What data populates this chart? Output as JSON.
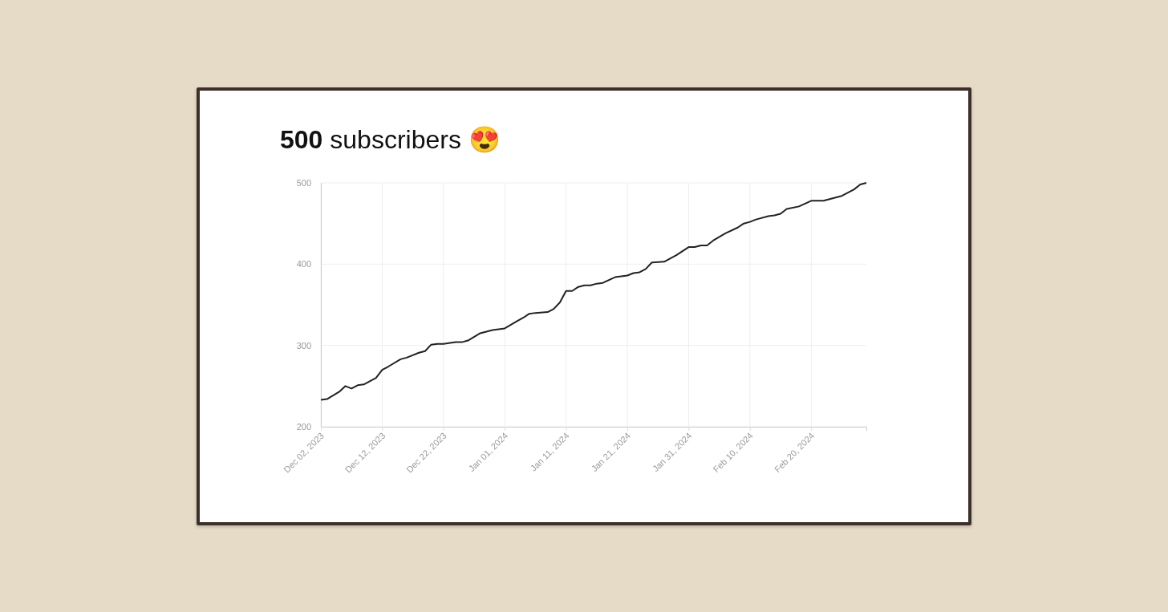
{
  "chart_data": {
    "type": "line",
    "title": "500 subscribers 😍",
    "x": [
      "2023-12-02",
      "2023-12-03",
      "2023-12-05",
      "2023-12-06",
      "2023-12-07",
      "2023-12-08",
      "2023-12-09",
      "2023-12-11",
      "2023-12-12",
      "2023-12-13",
      "2023-12-15",
      "2023-12-16",
      "2023-12-18",
      "2023-12-19",
      "2023-12-20",
      "2023-12-21",
      "2023-12-22",
      "2023-12-24",
      "2023-12-25",
      "2023-12-26",
      "2023-12-28",
      "2023-12-30",
      "2024-01-01",
      "2024-01-03",
      "2024-01-04",
      "2024-01-05",
      "2024-01-06",
      "2024-01-08",
      "2024-01-09",
      "2024-01-10",
      "2024-01-11",
      "2024-01-12",
      "2024-01-13",
      "2024-01-14",
      "2024-01-15",
      "2024-01-16",
      "2024-01-17",
      "2024-01-19",
      "2024-01-21",
      "2024-01-22",
      "2024-01-23",
      "2024-01-24",
      "2024-01-25",
      "2024-01-27",
      "2024-01-29",
      "2024-01-31",
      "2024-02-01",
      "2024-02-02",
      "2024-02-03",
      "2024-02-04",
      "2024-02-06",
      "2024-02-08",
      "2024-02-09",
      "2024-02-10",
      "2024-02-11",
      "2024-02-13",
      "2024-02-14",
      "2024-02-15",
      "2024-02-16",
      "2024-02-18",
      "2024-02-20",
      "2024-02-22",
      "2024-02-25",
      "2024-02-26",
      "2024-02-27",
      "2024-02-28",
      "2024-02-29"
    ],
    "series": [
      {
        "color": "#222222",
        "values": [
          233,
          234,
          243,
          250,
          247,
          251,
          252,
          260,
          270,
          274,
          283,
          285,
          291,
          293,
          301,
          302,
          302,
          304,
          304,
          306,
          315,
          319,
          321,
          330,
          334,
          339,
          340,
          341,
          345,
          353,
          367,
          367,
          372,
          374,
          374,
          376,
          377,
          384,
          386,
          389,
          390,
          394,
          402,
          403,
          411,
          421,
          421,
          423,
          423,
          429,
          438,
          445,
          450,
          452,
          455,
          459,
          460,
          462,
          468,
          471,
          478,
          478,
          484,
          488,
          492,
          498,
          500
        ]
      }
    ],
    "xlim": [
      "2023-12-02",
      "2024-02-29"
    ],
    "xticks": [
      {
        "value": "2023-12-02",
        "label": "Dec 02, 2023"
      },
      {
        "value": "2023-12-12",
        "label": "Dec 12, 2023"
      },
      {
        "value": "2023-12-22",
        "label": "Dec 22, 2023"
      },
      {
        "value": "2024-01-01",
        "label": "Jan 01, 2024"
      },
      {
        "value": "2024-01-11",
        "label": "Jan 11, 2024"
      },
      {
        "value": "2024-01-21",
        "label": "Jan 21, 2024"
      },
      {
        "value": "2024-01-31",
        "label": "Jan 31, 2024"
      },
      {
        "value": "2024-02-10",
        "label": "Feb 10, 2024"
      },
      {
        "value": "2024-02-20",
        "label": "Feb 20, 2024"
      }
    ],
    "ylim": [
      200,
      500
    ],
    "yticks": [
      200,
      300,
      400,
      500
    ],
    "grid": true
  }
}
